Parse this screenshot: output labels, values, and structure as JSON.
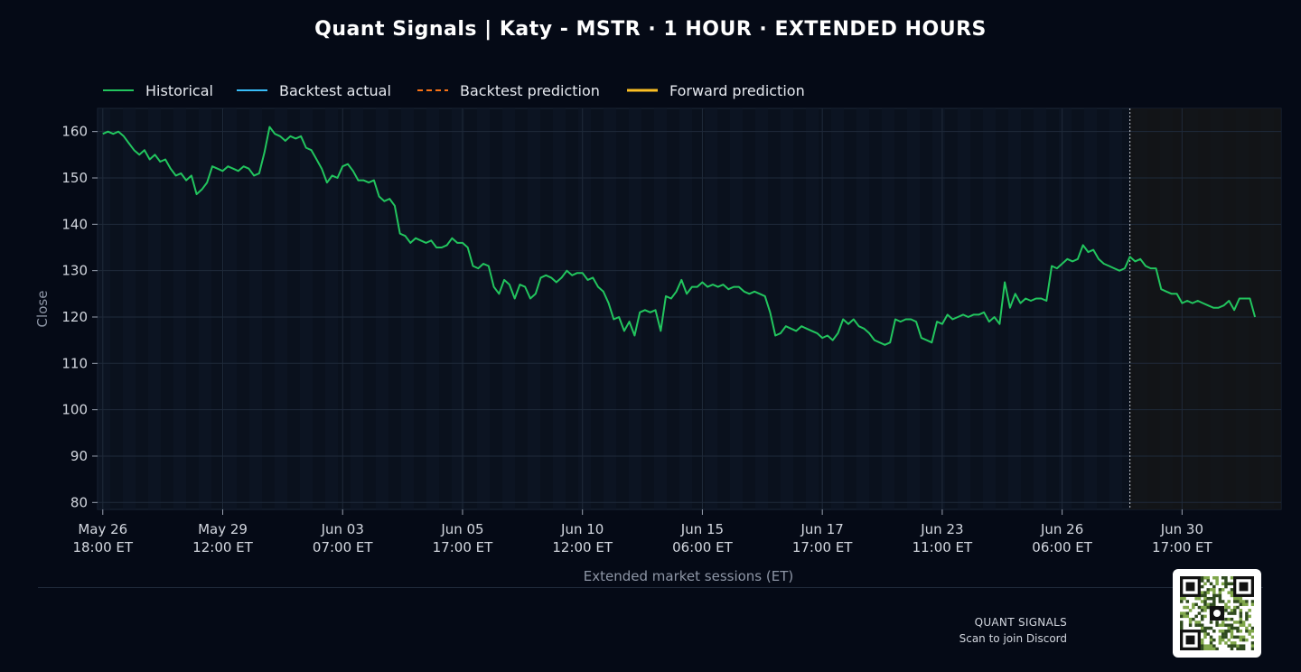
{
  "title": "Quant Signals | Katy - MSTR  ·  1 HOUR  ·  EXTENDED HOURS",
  "footer": {
    "brand": "QUANT SIGNALS",
    "cta": "Scan to join Discord"
  },
  "colors": {
    "historical": "#22c55e",
    "backtest_actual": "#38bdf8",
    "backtest_prediction": "#f97316",
    "forward_prediction": "#fbbf24",
    "background": "#050a16",
    "plot_bg": "#0a111d"
  },
  "chart_data": {
    "type": "line",
    "title": "Quant Signals | Katy - MSTR  ·  1 HOUR  ·  EXTENDED HOURS",
    "xlabel": "Extended market sessions (ET)",
    "ylabel": "Close",
    "ylim": [
      78.5,
      165
    ],
    "yticks": [
      80,
      90,
      100,
      110,
      120,
      130,
      140,
      150,
      160
    ],
    "x_unit": "hourly bar index (extended sessions)",
    "xlim": [
      -1,
      226
    ],
    "xticks": [
      {
        "x": 0,
        "label": [
          "May 26",
          "18:00 ET"
        ]
      },
      {
        "x": 23,
        "label": [
          "May 29",
          "12:00 ET"
        ]
      },
      {
        "x": 46,
        "label": [
          "Jun 03",
          "07:00 ET"
        ]
      },
      {
        "x": 69,
        "label": [
          "Jun 05",
          "17:00 ET"
        ]
      },
      {
        "x": 92,
        "label": [
          "Jun 10",
          "12:00 ET"
        ]
      },
      {
        "x": 115,
        "label": [
          "Jun 15",
          "06:00 ET"
        ]
      },
      {
        "x": 138,
        "label": [
          "Jun 17",
          "17:00 ET"
        ]
      },
      {
        "x": 161,
        "label": [
          "Jun 23",
          "11:00 ET"
        ]
      },
      {
        "x": 184,
        "label": [
          "Jun 26",
          "06:00 ET"
        ]
      },
      {
        "x": 207,
        "label": [
          "Jun 30",
          "17:00 ET"
        ]
      }
    ],
    "forecast_start_x": 197,
    "legend": {
      "placement": "top-left",
      "entries": [
        "Historical",
        "Backtest actual",
        "Backtest prediction",
        "Forward prediction"
      ]
    },
    "grid": true,
    "series": [
      {
        "name": "Historical",
        "style": "solid",
        "points": [
          [
            0,
            159.5
          ],
          [
            1,
            160
          ],
          [
            2,
            159.5
          ],
          [
            3,
            160
          ],
          [
            4,
            159
          ],
          [
            5,
            157.5
          ],
          [
            6,
            156
          ],
          [
            7,
            155
          ],
          [
            8,
            156
          ],
          [
            9,
            154
          ],
          [
            10,
            155
          ],
          [
            11,
            153.5
          ],
          [
            12,
            154
          ],
          [
            13,
            152
          ],
          [
            14,
            150.5
          ],
          [
            15,
            151
          ],
          [
            16,
            149.5
          ],
          [
            17,
            150.5
          ],
          [
            18,
            146.5
          ],
          [
            19,
            147.5
          ],
          [
            20,
            149
          ],
          [
            21,
            152.5
          ],
          [
            22,
            152
          ],
          [
            23,
            151.5
          ],
          [
            24,
            152.5
          ],
          [
            25,
            152
          ],
          [
            26,
            151.5
          ],
          [
            27,
            152.5
          ],
          [
            28,
            152
          ],
          [
            29,
            150.5
          ],
          [
            30,
            151
          ],
          [
            31,
            155.5
          ],
          [
            32,
            161
          ],
          [
            33,
            159.5
          ],
          [
            34,
            159
          ],
          [
            35,
            158
          ],
          [
            36,
            159
          ],
          [
            37,
            158.5
          ],
          [
            38,
            159
          ],
          [
            39,
            156.5
          ],
          [
            40,
            156
          ],
          [
            41,
            154
          ],
          [
            42,
            152
          ],
          [
            43,
            149
          ],
          [
            44,
            150.5
          ],
          [
            45,
            150
          ],
          [
            46,
            152.5
          ],
          [
            47,
            153
          ],
          [
            48,
            151.5
          ],
          [
            49,
            149.5
          ],
          [
            50,
            149.5
          ],
          [
            51,
            149
          ],
          [
            52,
            149.5
          ],
          [
            53,
            146
          ],
          [
            54,
            145
          ],
          [
            55,
            145.5
          ],
          [
            56,
            144
          ],
          [
            57,
            138
          ],
          [
            58,
            137.5
          ],
          [
            59,
            136
          ],
          [
            60,
            137
          ],
          [
            61,
            136.5
          ],
          [
            62,
            136
          ],
          [
            63,
            136.5
          ],
          [
            64,
            135
          ],
          [
            65,
            135
          ],
          [
            66,
            135.5
          ],
          [
            67,
            137
          ],
          [
            68,
            136
          ],
          [
            69,
            136
          ],
          [
            70,
            135
          ],
          [
            71,
            131
          ],
          [
            72,
            130.5
          ],
          [
            73,
            131.5
          ],
          [
            74,
            131
          ],
          [
            75,
            126.5
          ],
          [
            76,
            125
          ],
          [
            77,
            128
          ],
          [
            78,
            127
          ],
          [
            79,
            124
          ],
          [
            80,
            127
          ],
          [
            81,
            126.5
          ],
          [
            82,
            124
          ],
          [
            83,
            125
          ],
          [
            84,
            128.5
          ],
          [
            85,
            129
          ],
          [
            86,
            128.5
          ],
          [
            87,
            127.5
          ],
          [
            88,
            128.5
          ],
          [
            89,
            130
          ],
          [
            90,
            129
          ],
          [
            91,
            129.5
          ],
          [
            92,
            129.5
          ],
          [
            93,
            128
          ],
          [
            94,
            128.5
          ],
          [
            95,
            126.5
          ],
          [
            96,
            125.5
          ],
          [
            97,
            123
          ],
          [
            98,
            119.5
          ],
          [
            99,
            120
          ],
          [
            100,
            117
          ],
          [
            101,
            119
          ],
          [
            102,
            116
          ],
          [
            103,
            121
          ],
          [
            104,
            121.5
          ],
          [
            105,
            121
          ],
          [
            106,
            121.5
          ],
          [
            107,
            117
          ],
          [
            108,
            124.5
          ],
          [
            109,
            124
          ],
          [
            110,
            125.5
          ],
          [
            111,
            128
          ],
          [
            112,
            125
          ],
          [
            113,
            126.5
          ],
          [
            114,
            126.5
          ],
          [
            115,
            127.5
          ],
          [
            116,
            126.5
          ],
          [
            117,
            127
          ],
          [
            118,
            126.5
          ],
          [
            119,
            127
          ],
          [
            120,
            126
          ],
          [
            121,
            126.5
          ],
          [
            122,
            126.5
          ],
          [
            123,
            125.5
          ],
          [
            124,
            125
          ],
          [
            125,
            125.5
          ],
          [
            126,
            125
          ],
          [
            127,
            124.5
          ],
          [
            128,
            121
          ],
          [
            129,
            116
          ],
          [
            130,
            116.5
          ],
          [
            131,
            118
          ],
          [
            132,
            117.5
          ],
          [
            133,
            117
          ],
          [
            134,
            118
          ],
          [
            135,
            117.5
          ],
          [
            136,
            117
          ],
          [
            137,
            116.5
          ],
          [
            138,
            115.5
          ],
          [
            139,
            116
          ],
          [
            140,
            115
          ],
          [
            141,
            116.5
          ],
          [
            142,
            119.5
          ],
          [
            143,
            118.5
          ],
          [
            144,
            119.5
          ],
          [
            145,
            118
          ],
          [
            146,
            117.5
          ],
          [
            147,
            116.5
          ],
          [
            148,
            115
          ],
          [
            149,
            114.5
          ],
          [
            150,
            114
          ],
          [
            151,
            114.5
          ],
          [
            152,
            119.5
          ],
          [
            153,
            119
          ],
          [
            154,
            119.5
          ],
          [
            155,
            119.5
          ],
          [
            156,
            119
          ],
          [
            157,
            115.5
          ],
          [
            158,
            115
          ],
          [
            159,
            114.5
          ],
          [
            160,
            119
          ],
          [
            161,
            118.5
          ],
          [
            162,
            120.5
          ],
          [
            163,
            119.5
          ],
          [
            164,
            120
          ],
          [
            165,
            120.5
          ],
          [
            166,
            120
          ],
          [
            167,
            120.5
          ],
          [
            168,
            120.5
          ],
          [
            169,
            121
          ],
          [
            170,
            119
          ],
          [
            171,
            120
          ],
          [
            172,
            118.5
          ],
          [
            173,
            127.5
          ],
          [
            174,
            122
          ],
          [
            175,
            125
          ],
          [
            176,
            123
          ],
          [
            177,
            124
          ],
          [
            178,
            123.5
          ],
          [
            179,
            124
          ],
          [
            180,
            124
          ],
          [
            181,
            123.5
          ],
          [
            182,
            131
          ],
          [
            183,
            130.5
          ],
          [
            184,
            131.5
          ],
          [
            185,
            132.5
          ],
          [
            186,
            132
          ],
          [
            187,
            132.5
          ],
          [
            188,
            135.5
          ],
          [
            189,
            134
          ],
          [
            190,
            134.5
          ],
          [
            191,
            132.5
          ],
          [
            192,
            131.5
          ],
          [
            193,
            131
          ],
          [
            194,
            130.5
          ],
          [
            195,
            130
          ],
          [
            196,
            130.5
          ],
          [
            197,
            133
          ],
          [
            198,
            132
          ],
          [
            199,
            132.5
          ],
          [
            200,
            131
          ],
          [
            201,
            130.5
          ],
          [
            202,
            130.5
          ],
          [
            203,
            126
          ],
          [
            204,
            125.5
          ],
          [
            205,
            125
          ],
          [
            206,
            125
          ],
          [
            207,
            123
          ],
          [
            208,
            123.5
          ],
          [
            209,
            123
          ],
          [
            210,
            123.5
          ],
          [
            211,
            123
          ],
          [
            212,
            122.5
          ],
          [
            213,
            122
          ],
          [
            214,
            122
          ],
          [
            215,
            122.5
          ],
          [
            216,
            123.5
          ],
          [
            217,
            121.5
          ],
          [
            218,
            124
          ],
          [
            219,
            124
          ],
          [
            220,
            124
          ],
          [
            221,
            120
          ]
        ]
      },
      {
        "name": "Backtest actual",
        "style": "solid",
        "points": []
      },
      {
        "name": "Backtest prediction",
        "style": "dashed",
        "points": []
      },
      {
        "name": "Forward prediction",
        "style": "solid",
        "points": []
      }
    ]
  }
}
